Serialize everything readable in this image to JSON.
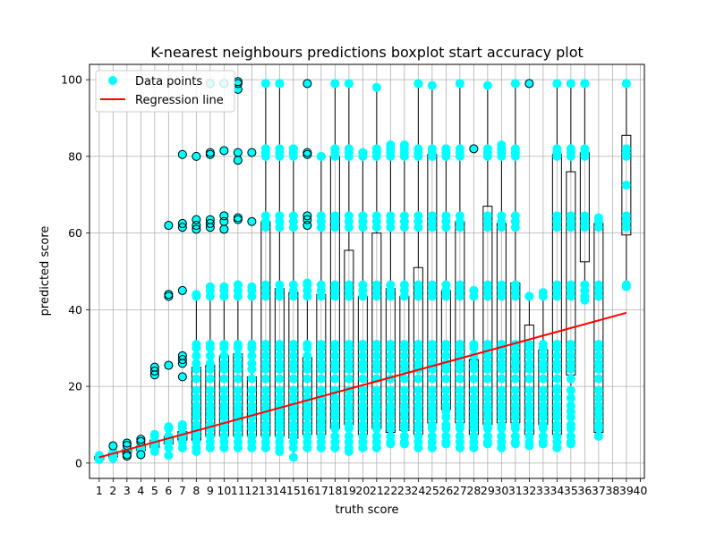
{
  "chart_data": {
    "type": "boxplot",
    "title": "K-nearest neighbours predictions boxplot start accuracy plot",
    "xlabel": "truth score",
    "ylabel": "predicted score",
    "xlim": [
      0.3,
      40.3
    ],
    "ylim": [
      -4,
      104
    ],
    "x_ticks": [
      1,
      2,
      3,
      4,
      5,
      6,
      7,
      8,
      9,
      10,
      11,
      12,
      13,
      14,
      15,
      16,
      17,
      18,
      19,
      20,
      21,
      22,
      23,
      24,
      25,
      26,
      27,
      28,
      29,
      30,
      31,
      32,
      33,
      34,
      35,
      36,
      37,
      38,
      39,
      40
    ],
    "y_ticks": [
      0,
      20,
      40,
      60,
      80,
      100
    ],
    "grid": true,
    "legend": {
      "placement": "top-left",
      "entries": [
        {
          "label": "Data points",
          "marker": "point",
          "color": "#00ffff"
        },
        {
          "label": "Regression line",
          "marker": "line",
          "color": "#ff0000"
        }
      ]
    },
    "colors": {
      "points": "#00ffff",
      "regression": "#ff0000",
      "median": "#ff7f0e",
      "box": "#000000",
      "grid": "#b0b0b0"
    },
    "regression_line": {
      "x": [
        1,
        39
      ],
      "y": [
        1.5,
        39.2
      ]
    },
    "boxes": [
      {
        "x": 1,
        "whislo": 0.9,
        "q1": 1.0,
        "med": 1.4,
        "q3": 1.7,
        "whishi": 2.0,
        "fliers": []
      },
      {
        "x": 2,
        "whislo": 1.2,
        "q1": 1.6,
        "med": 2.0,
        "q3": 2.5,
        "whishi": 3.0,
        "fliers": [
          4.5
        ]
      },
      {
        "x": 3,
        "whislo": 2.4,
        "q1": 2.7,
        "med": 3.0,
        "q3": 3.5,
        "whishi": 4.0,
        "fliers": [
          1.8,
          2.2,
          4.6,
          5.2
        ]
      },
      {
        "x": 4,
        "whislo": 2.8,
        "q1": 3.3,
        "med": 3.8,
        "q3": 4.4,
        "whishi": 5.0,
        "fliers": [
          2.2,
          5.6,
          6.2
        ]
      },
      {
        "x": 5,
        "whislo": 3.0,
        "q1": 4.0,
        "med": 4.8,
        "q3": 6.0,
        "whishi": 7.5,
        "fliers": [
          23.0,
          24.0,
          25.0
        ]
      },
      {
        "x": 6,
        "whislo": 2.0,
        "q1": 5.0,
        "med": 6.0,
        "q3": 7.0,
        "whishi": 9.5,
        "fliers": [
          25.5,
          43.5,
          44.0,
          62.0
        ]
      },
      {
        "x": 7,
        "whislo": 4.0,
        "q1": 6.0,
        "med": 7.5,
        "q3": 8.2,
        "whishi": 10.0,
        "fliers": [
          22.5,
          26.0,
          27.0,
          28.0,
          45.0,
          61.5,
          62.5,
          80.5
        ]
      },
      {
        "x": 8,
        "whislo": 3.0,
        "q1": 6.0,
        "med": 8.0,
        "q3": 25.0,
        "whishi": 44.0,
        "fliers": [
          61.0,
          62.0,
          63.5,
          80.0
        ]
      },
      {
        "x": 9,
        "whislo": 4.0,
        "q1": 7.0,
        "med": 10.0,
        "q3": 25.5,
        "whishi": 46.0,
        "fliers": [
          61.5,
          62.5,
          63.5,
          80.5,
          81.0,
          99.0
        ]
      },
      {
        "x": 10,
        "whislo": 4.0,
        "q1": 7.0,
        "med": 10.0,
        "q3": 28.0,
        "whishi": 46.0,
        "fliers": [
          61.0,
          63.0,
          64.5,
          81.5,
          99.0
        ]
      },
      {
        "x": 11,
        "whislo": 4.0,
        "q1": 7.0,
        "med": 10.5,
        "q3": 28.5,
        "whishi": 46.5,
        "fliers": [
          63.5,
          64.0,
          79.0,
          81.0,
          97.5,
          99.0,
          99.5
        ]
      },
      {
        "x": 12,
        "whislo": 4.0,
        "q1": 7.0,
        "med": 9.0,
        "q3": 22.5,
        "whishi": 46.0,
        "fliers": [
          63.0,
          81.0
        ]
      },
      {
        "x": 13,
        "whislo": 4.0,
        "q1": 7.0,
        "med": 10.0,
        "q3": 63.0,
        "whishi": 99.0,
        "fliers": []
      },
      {
        "x": 14,
        "whislo": 3.0,
        "q1": 7.0,
        "med": 11.0,
        "q3": 45.5,
        "whishi": 99.0,
        "fliers": []
      },
      {
        "x": 15,
        "whislo": 1.5,
        "q1": 6.5,
        "med": 19.0,
        "q3": 44.5,
        "whishi": 82.0,
        "fliers": []
      },
      {
        "x": 16,
        "whislo": 4.0,
        "q1": 7.5,
        "med": 12.0,
        "q3": 27.5,
        "whishi": 47.0,
        "fliers": [
          62.0,
          63.5,
          64.5,
          80.5,
          81.0,
          99.0
        ]
      },
      {
        "x": 17,
        "whislo": 4.0,
        "q1": 7.5,
        "med": 11.5,
        "q3": 44.0,
        "whishi": 80.0,
        "fliers": []
      },
      {
        "x": 18,
        "whislo": 4.0,
        "q1": 9.0,
        "med": 24.5,
        "q3": 80.0,
        "whishi": 99.0,
        "fliers": []
      },
      {
        "x": 19,
        "whislo": 3.0,
        "q1": 10.0,
        "med": 30.0,
        "q3": 55.5,
        "whishi": 99.0,
        "fliers": []
      },
      {
        "x": 20,
        "whislo": 4.0,
        "q1": 7.5,
        "med": 15.0,
        "q3": 43.5,
        "whishi": 81.0,
        "fliers": []
      },
      {
        "x": 21,
        "whislo": 4.0,
        "q1": 9.0,
        "med": 14.0,
        "q3": 60.0,
        "whishi": 98.0,
        "fliers": []
      },
      {
        "x": 22,
        "whislo": 5.0,
        "q1": 8.0,
        "med": 14.5,
        "q3": 45.5,
        "whishi": 83.0,
        "fliers": []
      },
      {
        "x": 23,
        "whislo": 5.0,
        "q1": 8.5,
        "med": 14.0,
        "q3": 43.5,
        "whishi": 83.0,
        "fliers": []
      },
      {
        "x": 24,
        "whislo": 4.0,
        "q1": 7.5,
        "med": 15.0,
        "q3": 51.0,
        "whishi": 99.0,
        "fliers": []
      },
      {
        "x": 25,
        "whislo": 4.0,
        "q1": 10.5,
        "med": 17.0,
        "q3": 80.5,
        "whishi": 98.5,
        "fliers": []
      },
      {
        "x": 26,
        "whislo": 5.0,
        "q1": 14.0,
        "med": 25.0,
        "q3": 45.0,
        "whishi": 82.0,
        "fliers": []
      },
      {
        "x": 27,
        "whislo": 4.0,
        "q1": 10.5,
        "med": 25.0,
        "q3": 63.0,
        "whishi": 99.0,
        "fliers": []
      },
      {
        "x": 28,
        "whislo": 4.0,
        "q1": 7.5,
        "med": 11.0,
        "q3": 27.0,
        "whishi": 45.0,
        "fliers": [
          82.0
        ]
      },
      {
        "x": 29,
        "whislo": 5.0,
        "q1": 10.0,
        "med": 14.0,
        "q3": 67.0,
        "whishi": 98.5,
        "fliers": []
      },
      {
        "x": 30,
        "whislo": 4.0,
        "q1": 10.5,
        "med": 25.0,
        "q3": 62.5,
        "whishi": 83.0,
        "fliers": []
      },
      {
        "x": 31,
        "whislo": 5.0,
        "q1": 10.5,
        "med": 26.5,
        "q3": 47.0,
        "whishi": 99.0,
        "fliers": []
      },
      {
        "x": 32,
        "whislo": 4.5,
        "q1": 7.5,
        "med": 9.5,
        "q3": 36.0,
        "whishi": 43.5,
        "fliers": [
          99.0
        ]
      },
      {
        "x": 33,
        "whislo": 5.0,
        "q1": 10.0,
        "med": 25.5,
        "q3": 29.5,
        "whishi": 44.5,
        "fliers": []
      },
      {
        "x": 34,
        "whislo": 4.0,
        "q1": 7.5,
        "med": 19.5,
        "q3": 80.5,
        "whishi": 99.0,
        "fliers": []
      },
      {
        "x": 35,
        "whislo": 5.0,
        "q1": 23.0,
        "med": 30.0,
        "q3": 76.0,
        "whishi": 99.0,
        "fliers": []
      },
      {
        "x": 36,
        "whislo": 42.5,
        "q1": 52.5,
        "med": 62.0,
        "q3": 81.0,
        "whishi": 99.0,
        "fliers": []
      },
      {
        "x": 37,
        "whislo": 7.0,
        "q1": 8.0,
        "med": 9.5,
        "q3": 62.5,
        "whishi": 64.0,
        "fliers": []
      },
      {
        "x": 39,
        "whislo": 46.0,
        "q1": 59.5,
        "med": 72.5,
        "q3": 85.5,
        "whishi": 99.0,
        "fliers": []
      }
    ],
    "level_values": [
      1,
      4,
      5.5,
      7,
      9,
      10,
      12,
      13.5,
      15,
      17,
      19,
      22,
      24.5,
      26,
      28,
      30,
      31,
      43.5,
      45,
      46.5,
      61.5,
      63,
      64.5,
      80,
      81,
      82,
      99
    ]
  }
}
